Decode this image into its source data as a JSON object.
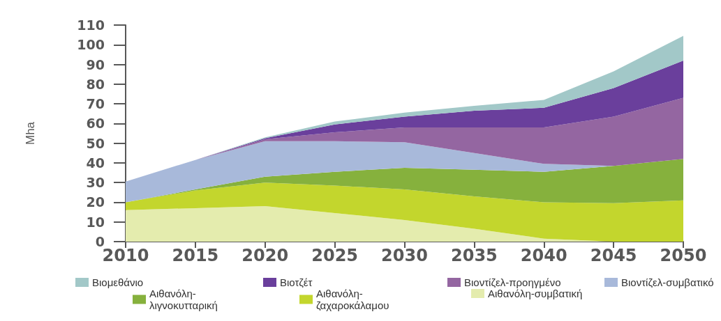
{
  "chart_data": {
    "type": "area",
    "stacked": true,
    "ylabel": "Mha",
    "x": [
      2010,
      2015,
      2020,
      2025,
      2030,
      2035,
      2040,
      2045,
      2050
    ],
    "xlim": [
      2010,
      2050
    ],
    "xticks": [
      2010,
      2015,
      2020,
      2025,
      2030,
      2035,
      2040,
      2045,
      2050
    ],
    "ylim": [
      0,
      110
    ],
    "yticks": [
      0,
      10,
      20,
      30,
      40,
      50,
      60,
      70,
      80,
      90,
      100,
      110
    ],
    "legend": "bottom",
    "series": [
      {
        "name": "Αιθανόλη-συμβατική",
        "color": "#e4ecae",
        "values": [
          16,
          17,
          18,
          14.5,
          11,
          6.5,
          1.5,
          0,
          0
        ]
      },
      {
        "name": "Αιθανόλη-ζαχαροκάλαμου",
        "color": "#c3d62d",
        "values": [
          4,
          9,
          12,
          14,
          15.5,
          16.5,
          18.5,
          19.5,
          21
        ]
      },
      {
        "name": "Αιθανόλη-λιγνοκυτταρική",
        "color": "#86b13d",
        "values": [
          0,
          0.5,
          3,
          7,
          11,
          13.5,
          15.5,
          19,
          21
        ]
      },
      {
        "name": "Βιοντίζελ-συμβατικό",
        "color": "#a8b9da",
        "values": [
          10.5,
          15,
          18,
          15.5,
          13,
          8.5,
          4,
          0,
          0
        ]
      },
      {
        "name": "Βιοντίζελ-προηγμένο",
        "color": "#9466a1",
        "values": [
          0,
          0,
          1,
          4.5,
          7.5,
          13,
          18.5,
          25,
          31
        ]
      },
      {
        "name": "Βιοτζέτ",
        "color": "#6a3f9c",
        "values": [
          0,
          0,
          0.5,
          4,
          5.5,
          8.5,
          10,
          14.5,
          19
        ]
      },
      {
        "name": "Βιομεθάνιο",
        "color": "#a2c8c8",
        "values": [
          0,
          0,
          0.5,
          1.5,
          2,
          2.5,
          4,
          8.5,
          12.5
        ]
      }
    ]
  }
}
